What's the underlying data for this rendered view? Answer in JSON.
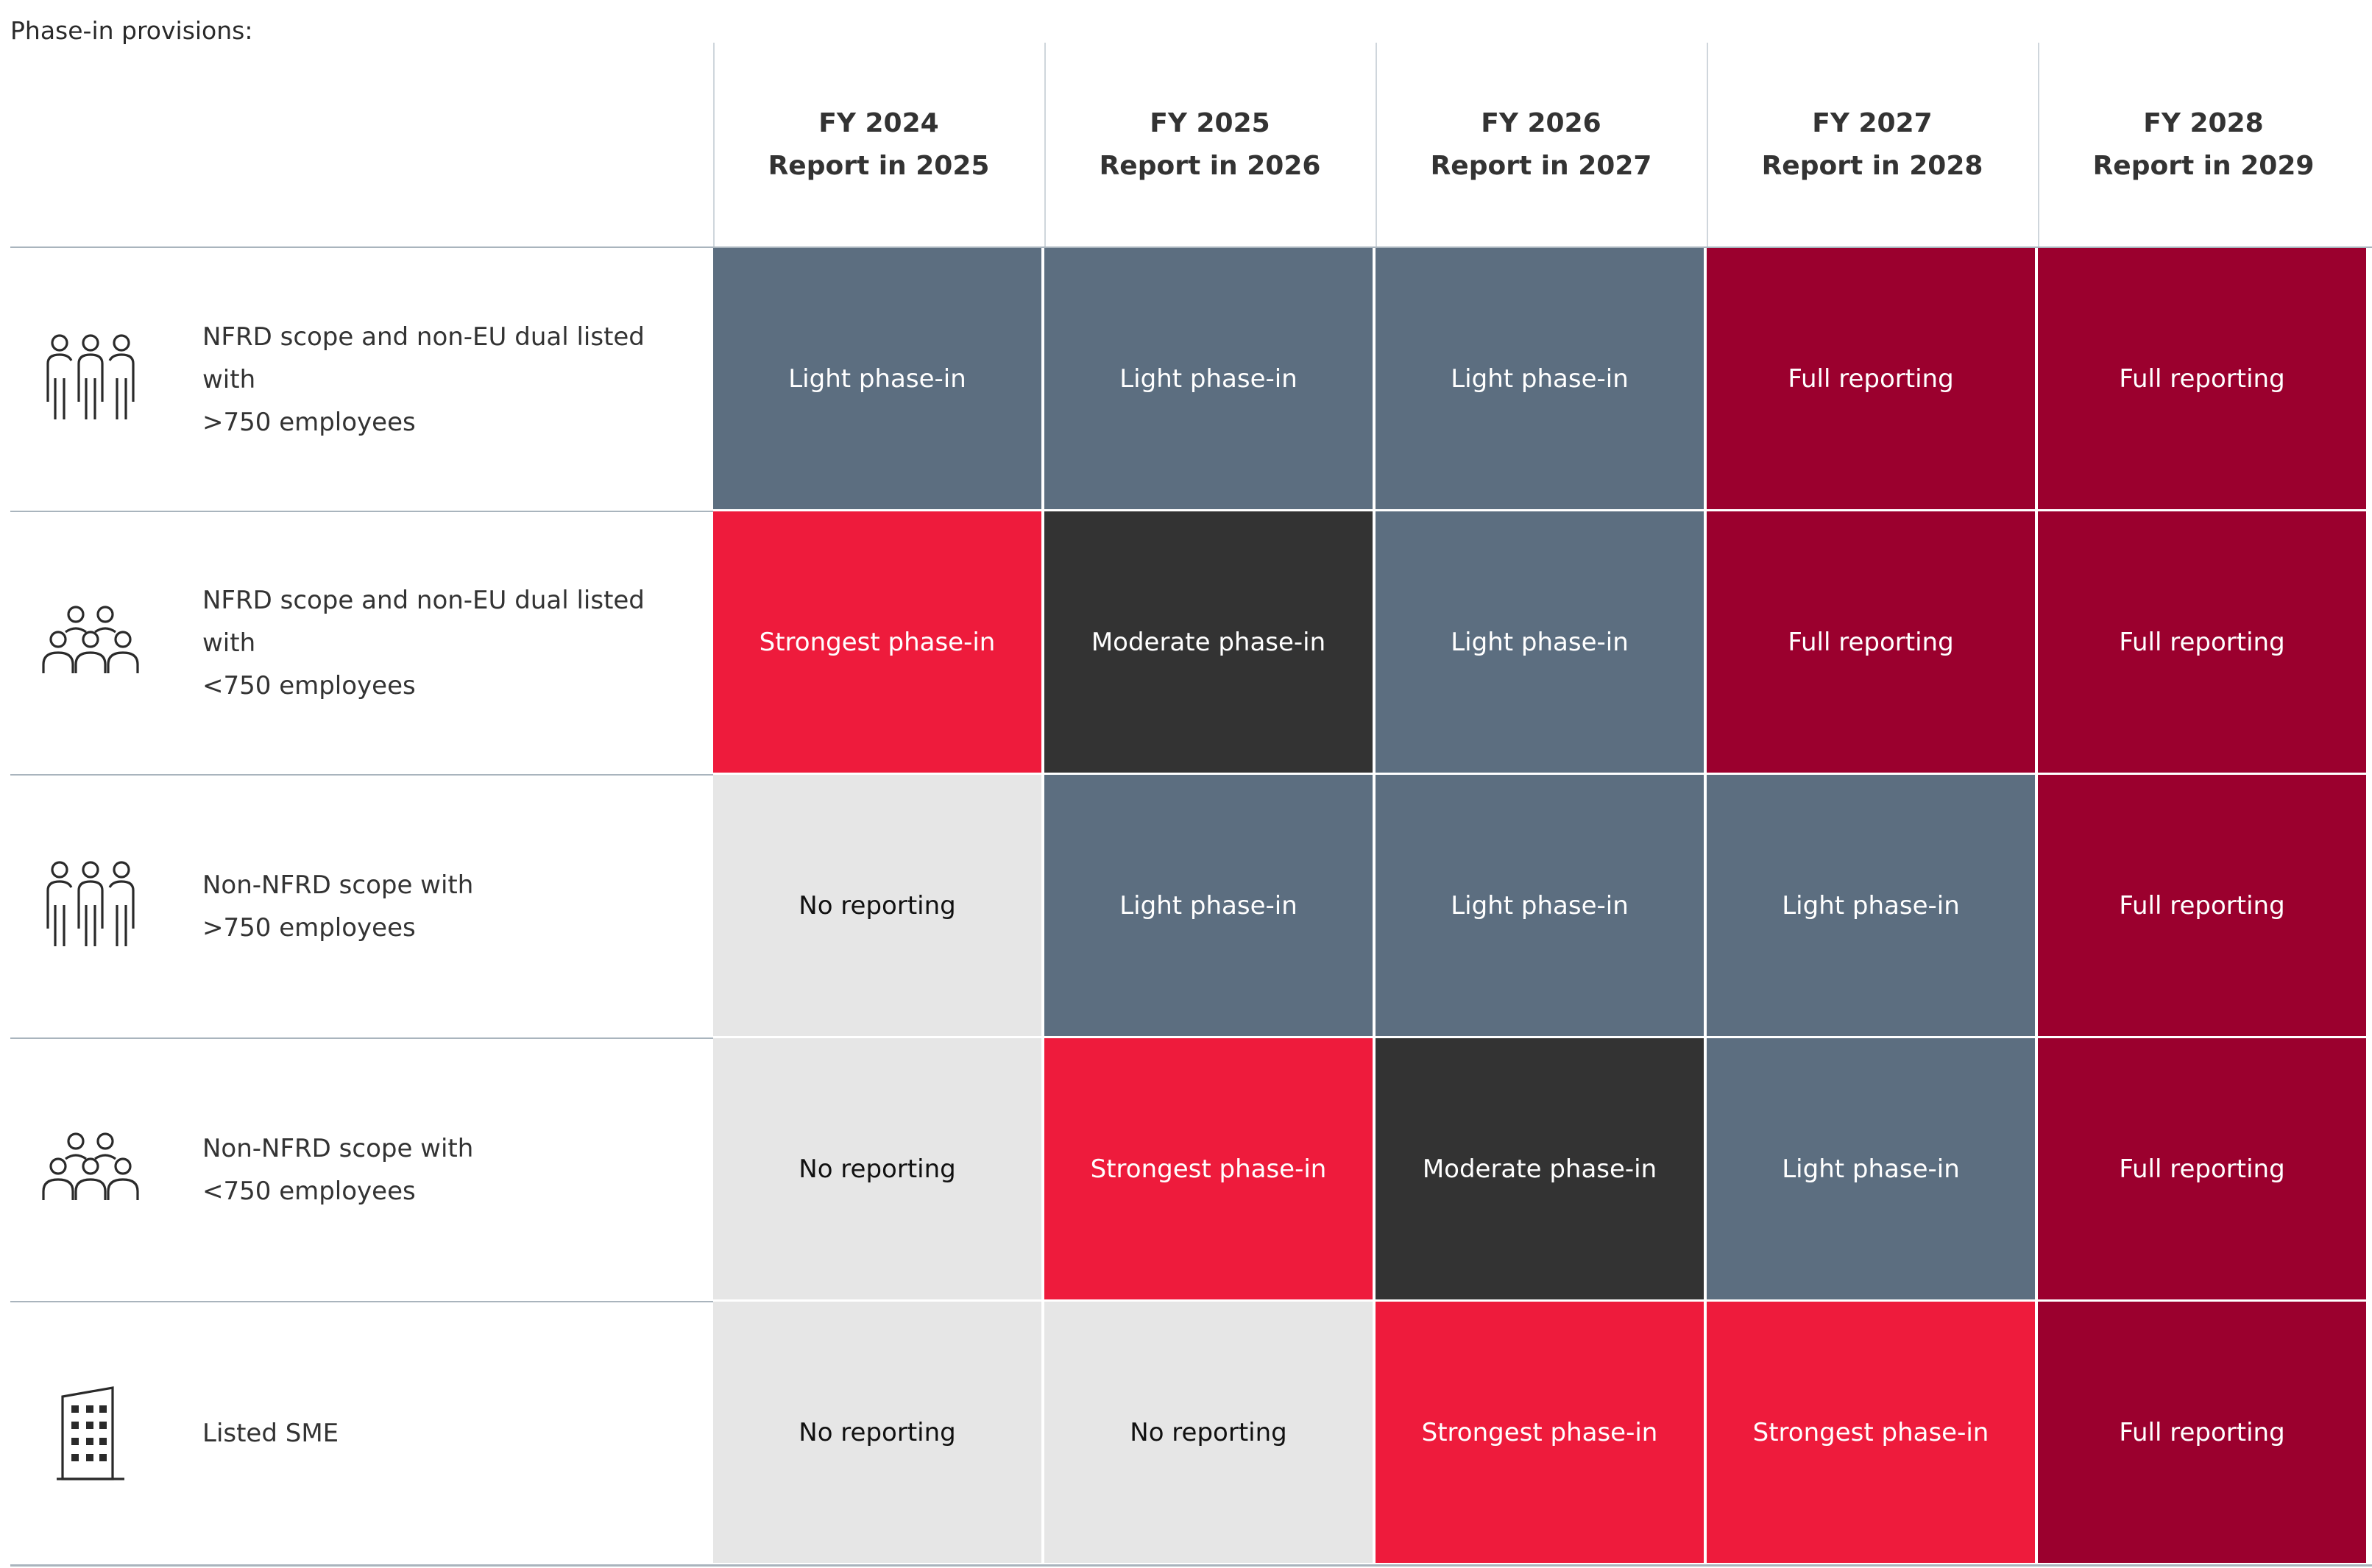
{
  "title": "Phase-in provisions:",
  "columns": [
    {
      "fy": "FY 2024",
      "report": "Report in 2025"
    },
    {
      "fy": "FY 2025",
      "report": "Report in 2026"
    },
    {
      "fy": "FY 2026",
      "report": "Report in 2027"
    },
    {
      "fy": "FY 2027",
      "report": "Report in 2028"
    },
    {
      "fy": "FY 2028",
      "report": "Report in 2029"
    }
  ],
  "categories": {
    "light": {
      "label": "Light phase-in",
      "bg": "#5c6e80",
      "fg": "#ffffff"
    },
    "full": {
      "label": "Full reporting",
      "bg": "#9b002e",
      "fg": "#ffffff"
    },
    "strongest": {
      "label": "Strongest phase-in",
      "bg": "#ee1b3c",
      "fg": "#ffffff"
    },
    "moderate": {
      "label": "Moderate phase-in",
      "bg": "#333333",
      "fg": "#ffffff"
    },
    "none": {
      "label": "No reporting",
      "bg": "#e6e6e6",
      "fg": "#111111"
    }
  },
  "rows": [
    {
      "line1": "NFRD scope and non-EU dual listed with",
      "line2": ">750 employees",
      "icon": "people-large-group-icon",
      "cells": [
        "light",
        "light",
        "light",
        "full",
        "full"
      ]
    },
    {
      "line1": "NFRD scope and non-EU dual listed with",
      "line2": "<750 employees",
      "icon": "people-small-group-icon",
      "cells": [
        "strongest",
        "moderate",
        "light",
        "full",
        "full"
      ]
    },
    {
      "line1": "Non-NFRD scope with",
      "line2": ">750 employees",
      "icon": "people-large-group-icon",
      "cells": [
        "none",
        "light",
        "light",
        "light",
        "full"
      ]
    },
    {
      "line1": "Non-NFRD scope with",
      "line2": "<750 employees",
      "icon": "people-small-group-icon",
      "cells": [
        "none",
        "strongest",
        "moderate",
        "light",
        "full"
      ]
    },
    {
      "line1": "Listed SME",
      "line2": "",
      "icon": "building-icon",
      "cells": [
        "none",
        "none",
        "strongest",
        "strongest",
        "full"
      ]
    }
  ]
}
